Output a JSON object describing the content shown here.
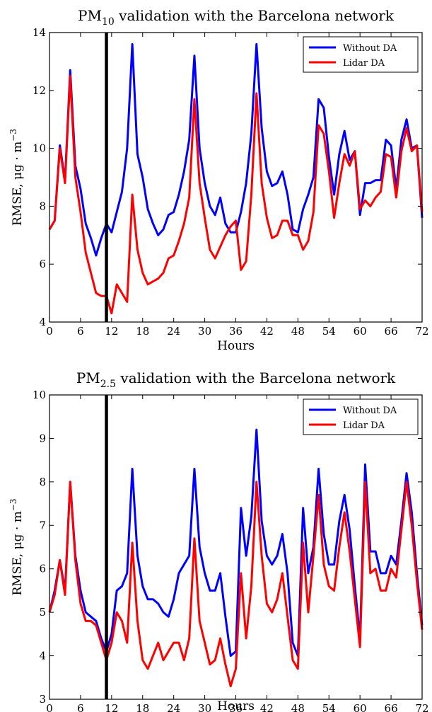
{
  "chart_data": [
    {
      "type": "line",
      "title": "PM10 validation with the Barcelona network",
      "title_main": "PM",
      "title_sub": "10",
      "title_rest": " validation with the Barcelona network",
      "xlabel": "Hours",
      "ylabel": "RMSE,  μg · m",
      "ylabel_sup": "−3",
      "xlim": [
        0,
        72
      ],
      "ylim": [
        4,
        14
      ],
      "xticks": [
        0,
        6,
        12,
        18,
        24,
        30,
        36,
        42,
        48,
        54,
        60,
        66,
        72
      ],
      "yticks": [
        4,
        6,
        8,
        10,
        12,
        14
      ],
      "grid": false,
      "legend_position": "top-right",
      "vline": 11,
      "x": [
        0,
        1,
        2,
        3,
        4,
        5,
        6,
        7,
        8,
        9,
        10,
        11,
        12,
        13,
        14,
        15,
        16,
        17,
        18,
        19,
        20,
        21,
        22,
        23,
        24,
        25,
        26,
        27,
        28,
        29,
        30,
        31,
        32,
        33,
        34,
        35,
        36,
        37,
        38,
        39,
        40,
        41,
        42,
        43,
        44,
        45,
        46,
        47,
        48,
        49,
        50,
        51,
        52,
        53,
        54,
        55,
        56,
        57,
        58,
        59,
        60,
        61,
        62,
        63,
        64,
        65,
        66,
        67,
        68,
        69,
        70,
        71,
        72
      ],
      "series": [
        {
          "name": "Without DA",
          "color": "#0000ff",
          "values": [
            7.2,
            7.5,
            10.1,
            8.9,
            12.7,
            9.4,
            8.6,
            7.4,
            6.9,
            6.3,
            6.9,
            7.4,
            7.1,
            7.8,
            8.5,
            10.0,
            13.6,
            9.8,
            9.0,
            7.9,
            7.4,
            7.0,
            7.2,
            7.7,
            7.8,
            8.4,
            9.2,
            10.3,
            13.2,
            10.0,
            8.8,
            8.0,
            7.7,
            8.3,
            7.4,
            7.1,
            7.1,
            7.8,
            8.8,
            10.5,
            13.6,
            10.7,
            9.2,
            8.7,
            8.8,
            9.2,
            8.4,
            7.2,
            7.1,
            7.9,
            8.4,
            9.0,
            11.7,
            11.4,
            9.7,
            8.4,
            9.8,
            10.6,
            9.6,
            9.9,
            7.7,
            8.8,
            8.8,
            8.9,
            8.9,
            10.3,
            10.1,
            8.6,
            10.3,
            11.0,
            10.0,
            10.1,
            7.6
          ]
        },
        {
          "name": "Lidar DA",
          "color": "#ff0000",
          "values": [
            7.2,
            7.5,
            10.0,
            8.8,
            12.5,
            9.0,
            7.8,
            6.4,
            5.7,
            5.0,
            4.9,
            4.9,
            4.3,
            5.3,
            5.0,
            4.7,
            8.4,
            6.5,
            5.7,
            5.3,
            5.4,
            5.5,
            5.7,
            6.2,
            6.3,
            6.8,
            7.4,
            8.3,
            11.7,
            8.8,
            7.6,
            6.5,
            6.2,
            6.6,
            7.0,
            7.3,
            7.5,
            5.8,
            6.1,
            8.4,
            11.9,
            8.8,
            7.6,
            6.9,
            7.0,
            7.5,
            7.5,
            7.0,
            7.0,
            6.5,
            6.8,
            7.8,
            10.8,
            10.5,
            9.2,
            7.6,
            8.8,
            9.8,
            9.4,
            9.9,
            7.9,
            8.2,
            8.0,
            8.3,
            8.5,
            9.8,
            9.7,
            8.3,
            9.9,
            10.7,
            9.9,
            10.1,
            7.8
          ]
        }
      ]
    },
    {
      "type": "line",
      "title": "PM2.5 validation with the Barcelona network",
      "title_main": "PM",
      "title_sub": "2.5",
      "title_rest": " validation with the Barcelona network",
      "xlabel": "Hours",
      "ylabel": "RMSE,  μg · m",
      "ylabel_sup": "−3",
      "xlim": [
        0,
        72
      ],
      "ylim": [
        3,
        10
      ],
      "xticks": [
        0,
        6,
        12,
        18,
        24,
        30,
        36,
        42,
        48,
        54,
        60,
        66,
        72
      ],
      "yticks": [
        3,
        4,
        5,
        6,
        7,
        8,
        9,
        10
      ],
      "grid": false,
      "legend_position": "top-right",
      "vline": 11,
      "x": [
        0,
        1,
        2,
        3,
        4,
        5,
        6,
        7,
        8,
        9,
        10,
        11,
        12,
        13,
        14,
        15,
        16,
        17,
        18,
        19,
        20,
        21,
        22,
        23,
        24,
        25,
        26,
        27,
        28,
        29,
        30,
        31,
        32,
        33,
        34,
        35,
        36,
        37,
        38,
        39,
        40,
        41,
        42,
        43,
        44,
        45,
        46,
        47,
        48,
        49,
        50,
        51,
        52,
        53,
        54,
        55,
        56,
        57,
        58,
        59,
        60,
        61,
        62,
        63,
        64,
        65,
        66,
        67,
        68,
        69,
        70,
        71,
        72
      ],
      "series": [
        {
          "name": "Without DA",
          "color": "#0000ff",
          "values": [
            5.0,
            5.5,
            6.2,
            5.5,
            8.0,
            6.3,
            5.5,
            5.0,
            4.9,
            4.8,
            4.4,
            4.1,
            4.5,
            5.5,
            5.6,
            5.9,
            8.3,
            6.3,
            5.6,
            5.3,
            5.3,
            5.2,
            5.0,
            4.9,
            5.3,
            5.9,
            6.1,
            6.3,
            8.3,
            6.5,
            5.9,
            5.5,
            5.5,
            5.9,
            4.9,
            4.0,
            4.1,
            7.4,
            6.3,
            7.2,
            9.2,
            7.1,
            6.3,
            6.1,
            6.3,
            6.8,
            5.9,
            4.3,
            4.0,
            7.4,
            5.9,
            6.5,
            8.3,
            6.8,
            6.1,
            6.1,
            7.1,
            7.7,
            6.9,
            5.6,
            4.4,
            8.4,
            6.4,
            6.4,
            5.9,
            5.9,
            6.3,
            6.1,
            7.1,
            8.2,
            7.3,
            5.9,
            4.7
          ]
        },
        {
          "name": "Lidar DA",
          "color": "#ff0000",
          "values": [
            5.0,
            5.4,
            6.2,
            5.4,
            8.0,
            6.2,
            5.2,
            4.8,
            4.8,
            4.7,
            4.3,
            3.9,
            4.3,
            5.0,
            4.8,
            4.3,
            6.6,
            4.8,
            3.9,
            3.7,
            4.0,
            4.3,
            3.9,
            4.1,
            4.3,
            4.3,
            3.9,
            4.4,
            6.7,
            4.8,
            4.3,
            3.8,
            3.9,
            4.4,
            3.8,
            3.3,
            3.7,
            5.9,
            4.4,
            5.6,
            8.0,
            6.3,
            5.2,
            5.0,
            5.3,
            5.9,
            4.9,
            3.9,
            3.7,
            6.6,
            5.0,
            6.3,
            7.7,
            6.1,
            5.6,
            5.5,
            6.5,
            7.3,
            6.4,
            5.3,
            4.2,
            8.0,
            5.9,
            6.0,
            5.5,
            5.5,
            6.0,
            5.8,
            6.9,
            8.0,
            7.0,
            5.7,
            4.6
          ]
        }
      ]
    }
  ]
}
